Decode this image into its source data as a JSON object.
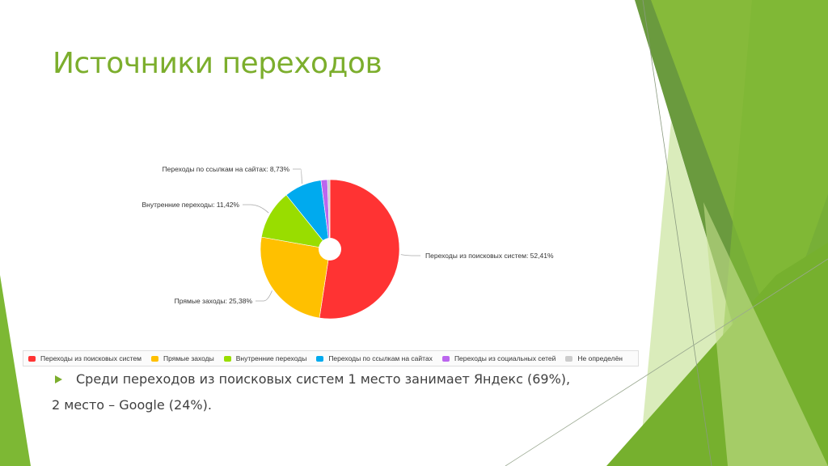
{
  "slide": {
    "title": "Источники переходов",
    "bullet_text": "Среди переходов из поисковых систем 1 место занимает Яндекс (69%),",
    "second_line": "2 место – Google (24%)."
  },
  "theme": {
    "accent": "#7cae2d"
  },
  "chart_data": {
    "type": "pie",
    "title": "",
    "series": [
      {
        "values": [
          52.41,
          25.38,
          11.42,
          8.73,
          1.5,
          0.56
        ]
      }
    ],
    "categories": [
      "Переходы из поисковых систем",
      "Прямые заходы",
      "Внутренние переходы",
      "Переходы по ссылкам на сайтах",
      "Переходы из социальных сетей",
      "Не определён"
    ],
    "colors": [
      "#ff3333",
      "#ffc000",
      "#99dd00",
      "#00aaee",
      "#bb66ee",
      "#cccccc"
    ],
    "data_labels": [
      "Переходы из поисковых систем: 52,41%",
      "Прямые заходы: 25,38%",
      "Внутренние переходы: 11,42%",
      "Переходы по ссылкам на сайтах: 8,73%"
    ],
    "legend": {
      "placement": "bottom",
      "items": [
        "Переходы из поисковых систем",
        "Прямые заходы",
        "Внутренние переходы",
        "Переходы по ссылкам на сайтах",
        "Переходы из социальных сетей",
        "Не определён"
      ]
    }
  }
}
